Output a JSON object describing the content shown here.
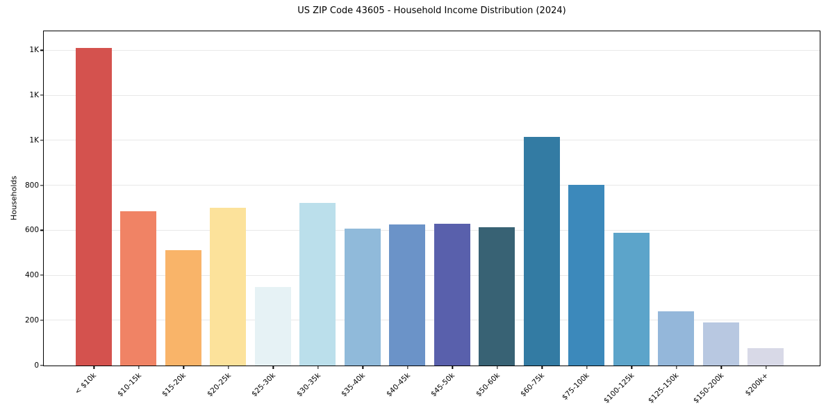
{
  "chart_data": {
    "type": "bar",
    "title": "US ZIP Code 43605 - Household Income Distribution (2024)",
    "xlabel": "",
    "ylabel": "Households",
    "categories": [
      "< $10k",
      "$10-15k",
      "$15-20k",
      "$20-25k",
      "$25-30k",
      "$30-35k",
      "$35-40k",
      "$40-45k",
      "$45-50k",
      "$50-60k",
      "$60-75k",
      "$75-100k",
      "$100-125k",
      "$125-150k",
      "$150-200k",
      "$200k+"
    ],
    "values": [
      1413,
      686,
      513,
      700,
      350,
      724,
      610,
      627,
      629,
      614,
      1015,
      804,
      591,
      242,
      193,
      76
    ],
    "bar_colors": [
      "#d4524e",
      "#f08365",
      "#f9b469",
      "#fce29b",
      "#e6f2f5",
      "#bbdfeb",
      "#90bada",
      "#6b93c8",
      "#5960ac",
      "#386274",
      "#337ba3",
      "#3c89bb",
      "#5ca4ca",
      "#94b7da",
      "#b8c8e1",
      "#d8d9e7"
    ],
    "ylim": [
      0,
      1483
    ],
    "yticks": [
      0,
      200,
      400,
      600,
      800,
      1000,
      1200,
      1400
    ],
    "ytick_labels": [
      "0",
      "200",
      "400",
      "600",
      "800",
      "1K",
      "1K",
      "1K"
    ],
    "legend": "none",
    "grid": "horizontal",
    "grid_color": "#e8e8e8",
    "spine_color": "#000000",
    "background_color": "#ffffff"
  }
}
